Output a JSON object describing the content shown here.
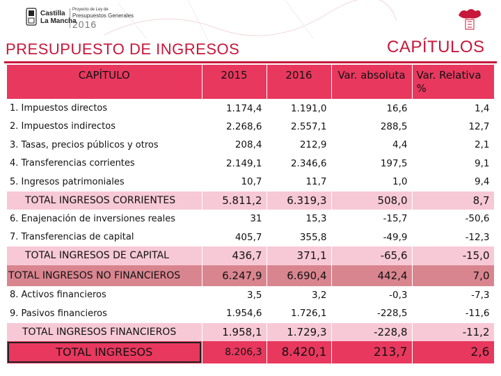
{
  "header": {
    "brand_line1": "Castilla",
    "brand_line2": "La Mancha",
    "law_line1": "Proyecto de Ley de",
    "law_line2": "Presupuestos Generales",
    "law_year": "2016"
  },
  "titles": {
    "left": "PRESUPUESTO DE INGRESOS",
    "right": "CAPÍTULOS"
  },
  "table": {
    "columns": [
      "CAPÍTULO",
      "2015",
      "2016",
      "Var. absoluta",
      "Var. Relativa %"
    ],
    "rows": [
      {
        "label": "1. Impuestos directos",
        "y2015": "1.174,4",
        "y2016": "1.191,0",
        "abs": "16,6",
        "rel": "1,4"
      },
      {
        "label": "2. Impuestos indirectos",
        "y2015": "2.268,6",
        "y2016": "2.557,1",
        "abs": "288,5",
        "rel": "12,7"
      },
      {
        "label": "3. Tasas, precios públicos y otros",
        "y2015": "208,4",
        "y2016": "212,9",
        "abs": "4,4",
        "rel": "2,1"
      },
      {
        "label": "4. Transferencias corrientes",
        "y2015": "2.149,1",
        "y2016": "2.346,6",
        "abs": "197,5",
        "rel": "9,1"
      },
      {
        "label": "5. Ingresos patrimoniales",
        "y2015": "10,7",
        "y2016": "11,7",
        "abs": "1,0",
        "rel": "9,4"
      },
      {
        "label": "TOTAL INGRESOS CORRIENTES",
        "y2015": "5.811,2",
        "y2016": "6.319,3",
        "abs": "508,0",
        "rel": "8,7"
      },
      {
        "label": "6. Enajenación de inversiones reales",
        "y2015": "31",
        "y2016": "15,3",
        "abs": "-15,7",
        "rel": "-50,6"
      },
      {
        "label": "7. Transferencias de capital",
        "y2015": "405,7",
        "y2016": "355,8",
        "abs": "-49,9",
        "rel": "-12,3"
      },
      {
        "label": "TOTAL INGRESOS  DE CAPITAL",
        "y2015": "436,7",
        "y2016": "371,1",
        "abs": "-65,6",
        "rel": "-15,0"
      },
      {
        "label": "TOTAL INGRESOS  NO FINANCIEROS",
        "y2015": "6.247,9",
        "y2016": "6.690,4",
        "abs": "442,4",
        "rel": "7,0"
      },
      {
        "label": "8. Activos financieros",
        "y2015": "3,5",
        "y2016": "3,2",
        "abs": "-0,3",
        "rel": "-7,3"
      },
      {
        "label": "9. Pasivos financieros",
        "y2015": "1.954,6",
        "y2016": "1.726,1",
        "abs": "-228,5",
        "rel": "-11,6"
      },
      {
        "label": "TOTAL INGRESOS  FINANCIEROS",
        "y2015": "1.958,1",
        "y2016": "1.729,3",
        "abs": "-228,8",
        "rel": "-11,2"
      },
      {
        "label": "TOTAL INGRESOS",
        "y2015": "8.206,3",
        "y2016": "8.420,1",
        "abs": "213,7",
        "rel": "2,6"
      }
    ]
  },
  "colors": {
    "accent": "#c8173a",
    "header_bg": "#e8385e",
    "subtotal_bg": "#f7c9d6",
    "nofin_bg": "#d9858f"
  }
}
